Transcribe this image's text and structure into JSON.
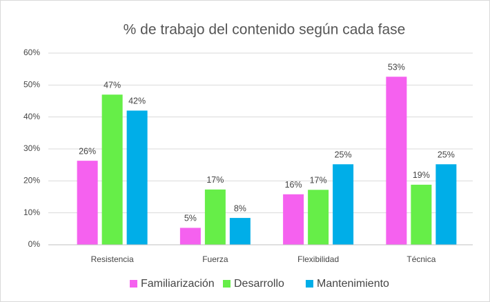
{
  "chart_data": {
    "type": "bar",
    "title": "% de trabajo del contenido según cada fase",
    "categories": [
      "Resistencia",
      "Fuerza",
      "Flexibilidad",
      "Técnica"
    ],
    "series": [
      {
        "name": "Familiarización",
        "color": "#f561ef",
        "values": [
          26.3,
          5.3,
          15.8,
          52.6
        ],
        "value_labels": [
          "26%",
          "5%",
          "16%",
          "53%"
        ]
      },
      {
        "name": "Desarrollo",
        "color": "#66ee48",
        "values": [
          47,
          17.3,
          17.2,
          18.8
        ],
        "value_labels": [
          "47%",
          "17%",
          "17%",
          "19%"
        ]
      },
      {
        "name": "Mantenimiento",
        "color": "#00aee8",
        "values": [
          42,
          8.4,
          25.2,
          25.2
        ],
        "value_labels": [
          "42%",
          "8%",
          "25%",
          "25%"
        ]
      }
    ],
    "ylim": [
      0,
      60
    ],
    "yticks": [
      {
        "value": 0,
        "label": "0%"
      },
      {
        "value": 10,
        "label": "10%"
      },
      {
        "value": 20,
        "label": "20%"
      },
      {
        "value": 30,
        "label": "30%"
      },
      {
        "value": 40,
        "label": "40%"
      },
      {
        "value": 50,
        "label": "50%"
      },
      {
        "value": 60,
        "label": "60%"
      }
    ],
    "grid": true,
    "legend": "bottom"
  }
}
